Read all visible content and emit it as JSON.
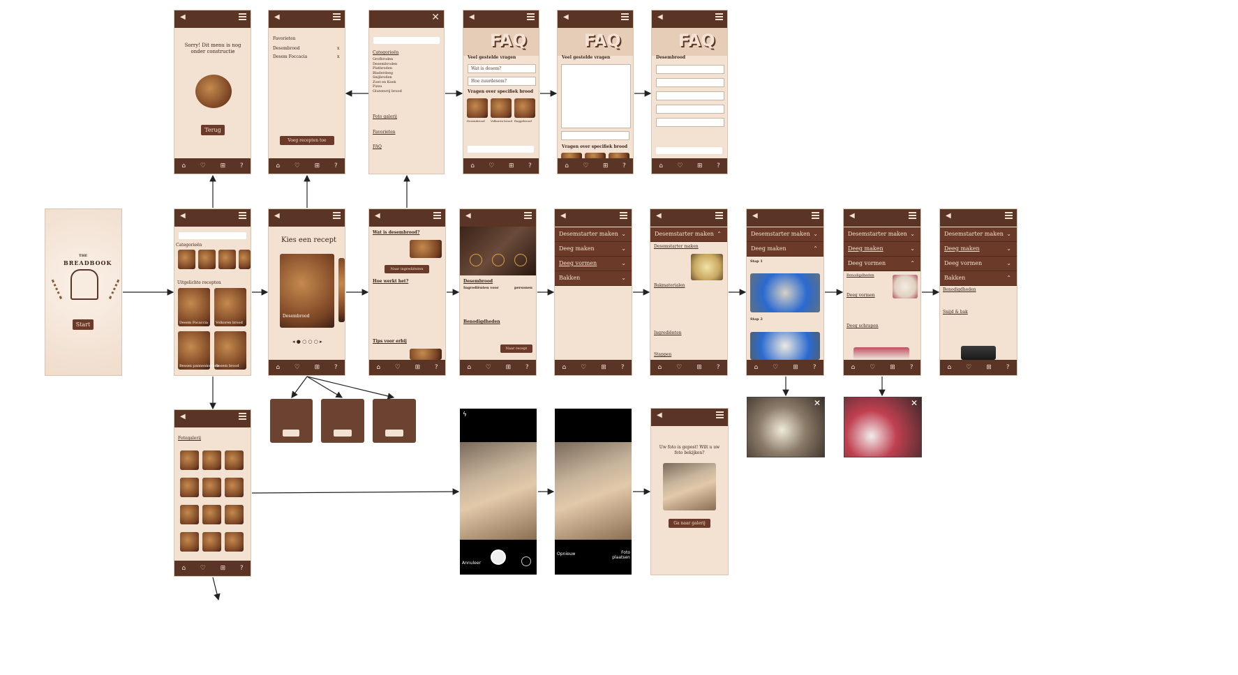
{
  "logo": {
    "top": "THE",
    "name": "BREADBOOK",
    "start_label": "Start"
  },
  "nav": {
    "back": "◀",
    "home": "⌂",
    "fav": "♡",
    "grid": "⊞",
    "help": "?"
  },
  "screens": {
    "construction": {
      "message": "Sorry! Dit menu is nog onder constructie",
      "button": "Terug"
    },
    "favorites": {
      "title": "Favorieten",
      "items": [
        "Desembrood",
        "Desem Foccacia"
      ],
      "remove": "x",
      "button": "Voeg recepten toe"
    },
    "menu": {
      "close": "✕",
      "items": [
        "Categorieën",
        "Foto galerij",
        "Favorieten",
        "FAQ"
      ],
      "categories": [
        "Grofbroden",
        "Desembroden",
        "Platbroden",
        "Bladerdeeg",
        "Snijbroden",
        "Zoet en Koek",
        "Pizza",
        "Glutenvrij brood"
      ]
    },
    "faq1": {
      "banner": "FAQ",
      "heading": "Veel gestelde vragen",
      "q1": "Wat is desem?",
      "q2": "Hoe zuurdesem?",
      "heading2": "Vragen over specifiek brood",
      "breads": [
        "Desembrood",
        "Volkoren brood",
        "Roggebrood"
      ]
    },
    "faq2": {
      "banner": "FAQ",
      "heading": "Veel gestelde vragen",
      "heading2": "Vragen over specifiek brood"
    },
    "faq3": {
      "banner": "FAQ",
      "heading": "Desembrood"
    },
    "home": {
      "categories": "Categorieën",
      "featured": "Uitgelichte recepten",
      "cards": [
        "Desem Focaccia",
        "Volkoren brood",
        "Bessen pannenkoeken",
        "Desem brood"
      ]
    },
    "choose": {
      "title": "Kies een recept",
      "card": "Desembrood"
    },
    "info": {
      "q1": "Wat is desembrood?",
      "button": "Naar ingrediënten",
      "q2": "Hoe werkt het?",
      "q3": "Tips voor erbij"
    },
    "ingredients": {
      "title": "Desembrood",
      "ingr": "Ingrediënten voor",
      "persons": "personen",
      "tools": "Benodigdheden",
      "button": "Naar recept"
    },
    "steps": {
      "s1": [
        "Desemstarter maken",
        "Deeg maken",
        "Deeg vormen",
        "Bakken"
      ],
      "s2": {
        "open": "Desemstarter maken",
        "sub": "Bakmaterialen",
        "ingr": "Ingrediënten",
        "stappen": "Stappen"
      },
      "s3": {
        "open": "Deeg maken",
        "step1": "Stap 1",
        "step2": "Stap 2"
      },
      "s4": {
        "open": "Deeg vormen",
        "sub": "Benodigdheden",
        "sub2": "Deeg vormen",
        "sub3": "Deeg schrapen"
      },
      "s5": {
        "open": "Bakken",
        "sub": "Benodigdheden",
        "sub2": "Snijd & bak"
      }
    },
    "gallery": {
      "title": "Fotogalerij"
    },
    "camera": {
      "cancel": "Annuleer",
      "retry": "Opnieuw",
      "place": "Foto plaatsen"
    },
    "posted": {
      "message": "Uw foto is gepost! Wilt u uw foto bekijken?",
      "button": "Ga naar galerij"
    }
  }
}
